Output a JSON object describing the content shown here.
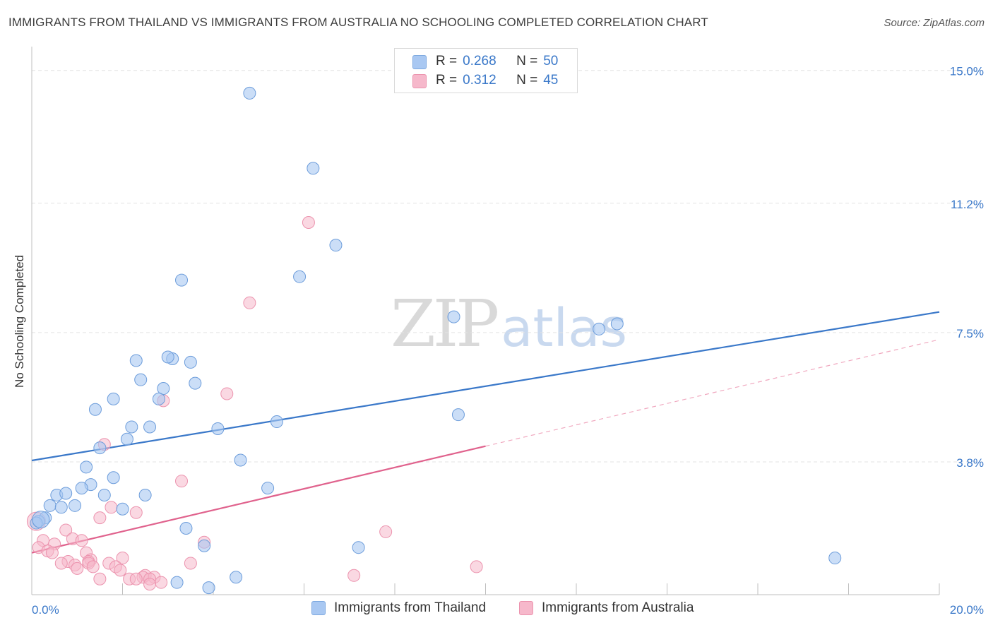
{
  "title": "IMMIGRANTS FROM THAILAND VS IMMIGRANTS FROM AUSTRALIA NO SCHOOLING COMPLETED CORRELATION CHART",
  "source": "Source: ZipAtlas.com",
  "watermark": {
    "zip": "ZIP",
    "atlas": "atlas"
  },
  "legend": {
    "rows": [
      {
        "r_label": "R =",
        "r_value": "0.268",
        "n_label": "N =",
        "n_value": "50",
        "color": "#a9c8f2"
      },
      {
        "r_label": "R =",
        "r_value": "0.312",
        "n_label": "N =",
        "n_value": "45",
        "color": "#f6b8cb"
      }
    ]
  },
  "bottom_legend": {
    "thailand": "Immigrants from Thailand",
    "australia": "Immigrants from Australia"
  },
  "chart_data": {
    "type": "scatter",
    "title": "IMMIGRANTS FROM THAILAND VS IMMIGRANTS FROM AUSTRALIA NO SCHOOLING COMPLETED CORRELATION CHART",
    "xlabel": "",
    "ylabel": "No Schooling Completed",
    "xlim": [
      0,
      20
    ],
    "ylim": [
      0,
      15.5
    ],
    "x_tick_labels": [
      "0.0%",
      "20.0%"
    ],
    "y_ticks": [
      3.8,
      7.5,
      11.2,
      15.0
    ],
    "y_tick_labels": [
      "3.8%",
      "7.5%",
      "11.2%",
      "15.0%"
    ],
    "grid": true,
    "colors": {
      "thailand": "#3a78c9",
      "thailand_fill": "#a9c8f2",
      "australia": "#e0628d",
      "australia_fill": "#f6b8cb",
      "tick_label": "#3a78c9"
    },
    "series": [
      {
        "name": "Immigrants from Thailand",
        "trend": {
          "x": [
            0,
            20
          ],
          "y": [
            3.84,
            8.09
          ],
          "style": "solid"
        },
        "points": [
          [
            4.8,
            14.35
          ],
          [
            6.2,
            12.2
          ],
          [
            6.7,
            10.0
          ],
          [
            5.9,
            9.1
          ],
          [
            3.3,
            9.0
          ],
          [
            9.3,
            7.95
          ],
          [
            12.5,
            7.6
          ],
          [
            12.9,
            7.75
          ],
          [
            2.3,
            6.7
          ],
          [
            3.1,
            6.75
          ],
          [
            3.5,
            6.65
          ],
          [
            3.0,
            6.8
          ],
          [
            2.4,
            6.15
          ],
          [
            2.9,
            5.9
          ],
          [
            3.6,
            6.05
          ],
          [
            2.8,
            5.6
          ],
          [
            1.8,
            5.6
          ],
          [
            1.4,
            5.3
          ],
          [
            9.4,
            5.15
          ],
          [
            5.4,
            4.95
          ],
          [
            4.1,
            4.75
          ],
          [
            2.2,
            4.8
          ],
          [
            2.6,
            4.8
          ],
          [
            2.1,
            4.45
          ],
          [
            1.5,
            4.2
          ],
          [
            4.6,
            3.85
          ],
          [
            1.2,
            3.65
          ],
          [
            1.8,
            3.35
          ],
          [
            1.3,
            3.15
          ],
          [
            1.1,
            3.05
          ],
          [
            5.2,
            3.05
          ],
          [
            0.55,
            2.85
          ],
          [
            0.75,
            2.9
          ],
          [
            1.6,
            2.85
          ],
          [
            2.5,
            2.85
          ],
          [
            0.4,
            2.55
          ],
          [
            0.65,
            2.5
          ],
          [
            0.95,
            2.55
          ],
          [
            2.0,
            2.45
          ],
          [
            0.3,
            2.2
          ],
          [
            0.15,
            2.1
          ],
          [
            0.1,
            2.05
          ],
          [
            3.4,
            1.9
          ],
          [
            3.8,
            1.4
          ],
          [
            7.2,
            1.35
          ],
          [
            17.7,
            1.05
          ],
          [
            4.5,
            0.5
          ],
          [
            3.2,
            0.35
          ],
          [
            3.9,
            0.2
          ],
          [
            0.2,
            2.15
          ]
        ]
      },
      {
        "name": "Immigrants from Australia",
        "trend": {
          "x": [
            0,
            10
          ],
          "y": [
            1.2,
            4.25
          ],
          "style": "solid"
        },
        "trend_extension": {
          "x": [
            10,
            20
          ],
          "y": [
            4.25,
            7.3
          ],
          "style": "dashed"
        },
        "points": [
          [
            6.1,
            10.65
          ],
          [
            4.8,
            8.35
          ],
          [
            4.3,
            5.75
          ],
          [
            2.9,
            5.55
          ],
          [
            1.6,
            4.3
          ],
          [
            3.3,
            3.25
          ],
          [
            1.75,
            2.5
          ],
          [
            2.3,
            2.35
          ],
          [
            1.5,
            2.2
          ],
          [
            7.8,
            1.8
          ],
          [
            0.75,
            1.85
          ],
          [
            3.8,
            1.5
          ],
          [
            0.25,
            1.55
          ],
          [
            0.9,
            1.6
          ],
          [
            1.1,
            1.55
          ],
          [
            0.5,
            1.45
          ],
          [
            0.15,
            1.35
          ],
          [
            0.35,
            1.25
          ],
          [
            0.45,
            1.2
          ],
          [
            1.2,
            1.2
          ],
          [
            1.3,
            1.0
          ],
          [
            2.0,
            1.05
          ],
          [
            1.25,
            0.95
          ],
          [
            0.8,
            0.95
          ],
          [
            0.65,
            0.9
          ],
          [
            1.25,
            0.9
          ],
          [
            1.7,
            0.9
          ],
          [
            3.5,
            0.9
          ],
          [
            0.95,
            0.85
          ],
          [
            1.35,
            0.8
          ],
          [
            1.85,
            0.8
          ],
          [
            9.8,
            0.8
          ],
          [
            1.0,
            0.75
          ],
          [
            1.95,
            0.7
          ],
          [
            7.1,
            0.55
          ],
          [
            2.5,
            0.55
          ],
          [
            2.45,
            0.5
          ],
          [
            2.7,
            0.5
          ],
          [
            1.5,
            0.45
          ],
          [
            2.15,
            0.45
          ],
          [
            2.3,
            0.45
          ],
          [
            2.6,
            0.45
          ],
          [
            2.85,
            0.35
          ],
          [
            2.6,
            0.3
          ],
          [
            0.1,
            2.1
          ]
        ]
      }
    ]
  }
}
